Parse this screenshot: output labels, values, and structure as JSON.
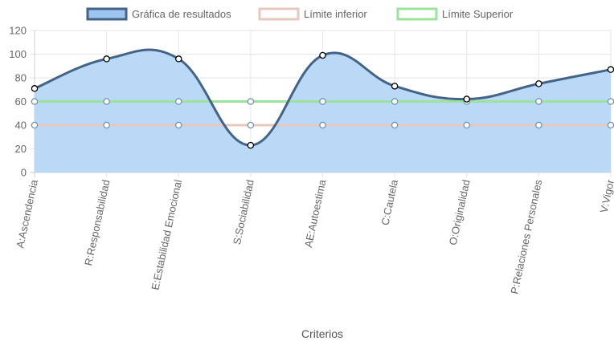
{
  "chart_data": {
    "type": "line",
    "categories": [
      "A:Ascendencia",
      "R:Responsabilidad",
      "E:Estabilidad Emocional",
      "S:Sociabilidad",
      "AE:Autoestima",
      "C:Cautela",
      "O:Originalidad",
      "P:Relaciones Personales",
      "V:Vigor"
    ],
    "series": [
      {
        "name": "Gráfica de resultados",
        "values": [
          71,
          96,
          96,
          23,
          99,
          73,
          62,
          75,
          87
        ],
        "border_color": "#436487",
        "fill_color": "#b9d9f7",
        "legend_fill": "#9ec5f0",
        "fill": true,
        "smooth": true
      },
      {
        "name": "Límite inferior",
        "values": [
          40,
          40,
          40,
          40,
          40,
          40,
          40,
          40,
          40
        ],
        "border_color": "#e8c8be",
        "legend_fill": "#ffffff",
        "fill": false,
        "smooth": false
      },
      {
        "name": "Límite Superior",
        "values": [
          60,
          60,
          60,
          60,
          60,
          60,
          60,
          60,
          60
        ],
        "border_color": "#9be39b",
        "legend_fill": "#ffffff",
        "fill": false,
        "smooth": false
      }
    ],
    "y_ticks": [
      "0",
      "20",
      "40",
      "60",
      "80",
      "100",
      "120"
    ],
    "ylim": [
      0,
      120
    ],
    "xlabel": "Criterios",
    "ylabel": "",
    "grid": true,
    "legend_position": "top"
  }
}
